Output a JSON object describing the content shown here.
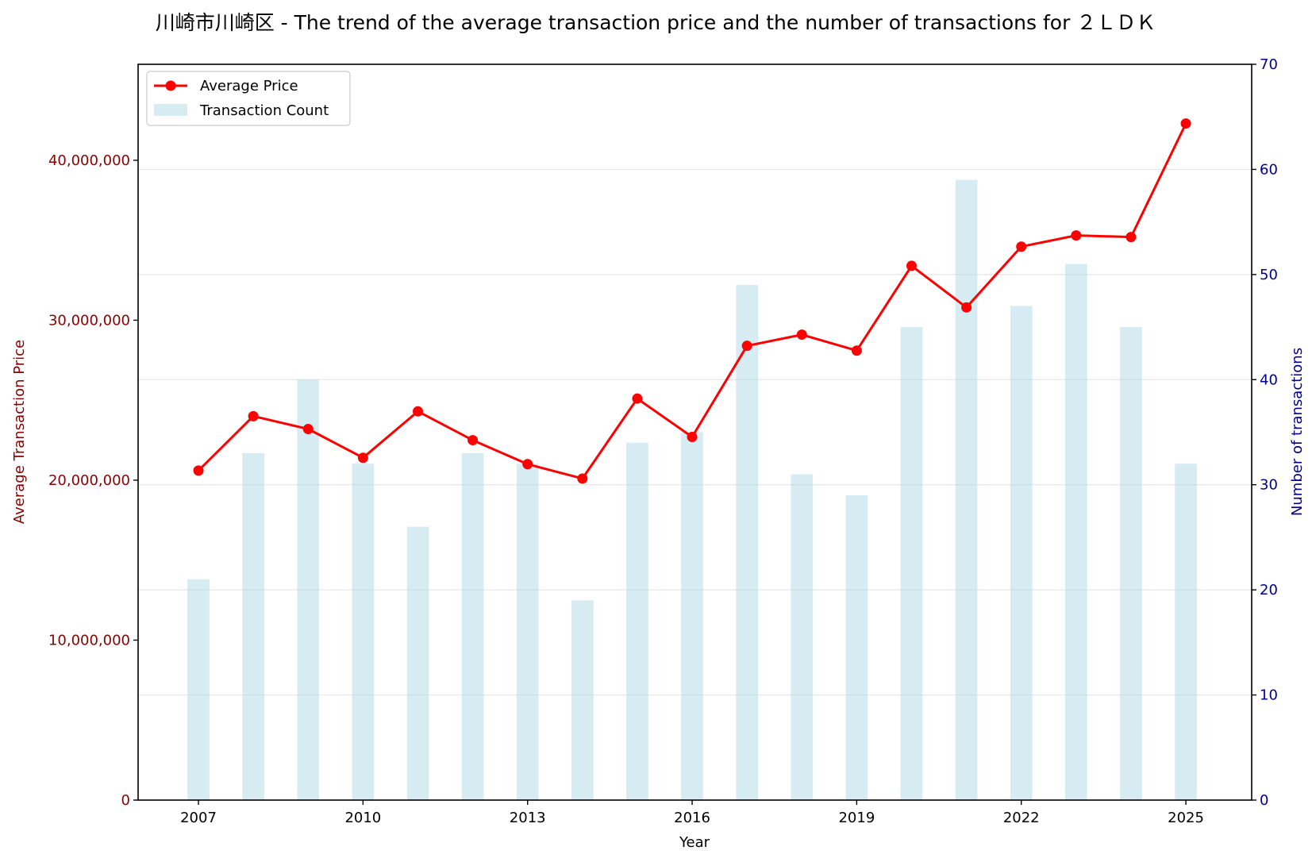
{
  "chart_data": {
    "type": "bar+line",
    "title": "川崎市川崎区 - The trend of the average transaction price and the number of transactions for ２ＬＤＫ",
    "xlabel": "Year",
    "ylabel_left": "Average Transaction Price",
    "ylabel_right": "Number of transactions",
    "x": [
      2007,
      2008,
      2009,
      2010,
      2011,
      2012,
      2013,
      2014,
      2015,
      2016,
      2017,
      2018,
      2019,
      2020,
      2021,
      2022,
      2023,
      2024,
      2025
    ],
    "xticks": [
      "2007",
      "2010",
      "2013",
      "2016",
      "2019",
      "2022",
      "2025"
    ],
    "xlim": [
      2005.9,
      2026.2
    ],
    "ylim_left": [
      0,
      46000000
    ],
    "yticks_left": [
      "0",
      "10,000,000",
      "20,000,000",
      "30,000,000",
      "40,000,000"
    ],
    "ylim_right": [
      0,
      70
    ],
    "yticks_right": [
      "0",
      "10",
      "20",
      "30",
      "40",
      "50",
      "60",
      "70"
    ],
    "grid": "horizontal",
    "legend_placement": "top-left",
    "series": [
      {
        "name": "Average Price",
        "type": "line",
        "axis": "left",
        "color": "#ff0000",
        "values": [
          20600000,
          24000000,
          23200000,
          21400000,
          24300000,
          22500000,
          21000000,
          20100000,
          25100000,
          22700000,
          28400000,
          29100000,
          28100000,
          33400000,
          30800000,
          34600000,
          35300000,
          35200000,
          42300000
        ]
      },
      {
        "name": "Transaction Count",
        "type": "bar",
        "axis": "right",
        "color": "#add8e6",
        "values": [
          21,
          33,
          40,
          32,
          26,
          33,
          32,
          19,
          34,
          35,
          49,
          31,
          29,
          45,
          59,
          47,
          51,
          45,
          32
        ]
      }
    ],
    "colors": {
      "left_axis": "#8b0000",
      "right_axis": "#00008b"
    }
  }
}
